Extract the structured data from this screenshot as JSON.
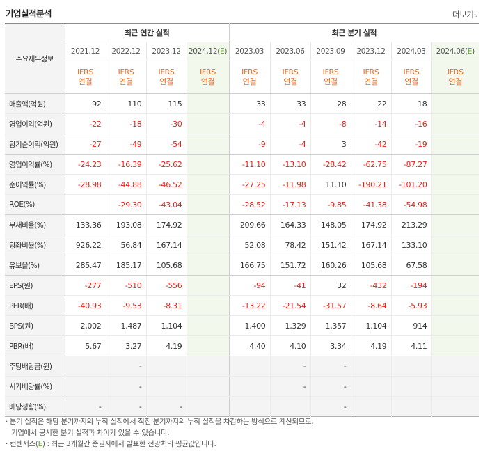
{
  "header": {
    "title": "기업실적분석",
    "more_label": "더보기"
  },
  "table": {
    "row_header": "주요재무정보",
    "groups": {
      "annual": "최근 연간 실적",
      "quarterly": "최근 분기 실적"
    },
    "annual_periods": [
      "2021,12",
      "2022,12",
      "2023,12",
      "2024,12(E)"
    ],
    "quarterly_periods": [
      "2023,03",
      "2023,06",
      "2023,09",
      "2023,12",
      "2024,03",
      "2024,06(E)"
    ],
    "ifrs_top": "IFRS",
    "ifrs_bottom": "연결",
    "rows": [
      {
        "label": "매출액(억원)",
        "values": [
          "92",
          "110",
          "115",
          "",
          "33",
          "33",
          "28",
          "22",
          "18",
          ""
        ]
      },
      {
        "label": "영업이익(억원)",
        "values": [
          "-22",
          "-18",
          "-30",
          "",
          "-4",
          "-4",
          "-8",
          "-14",
          "-16",
          ""
        ]
      },
      {
        "label": "당기순이익(억원)",
        "values": [
          "-27",
          "-49",
          "-54",
          "",
          "-9",
          "-4",
          "3",
          "-42",
          "-19",
          ""
        ]
      },
      {
        "label": "영업이익률(%)",
        "values": [
          "-24.23",
          "-16.39",
          "-25.62",
          "",
          "-11.10",
          "-13.10",
          "-28.42",
          "-62.75",
          "-87.27",
          ""
        ]
      },
      {
        "label": "순이익률(%)",
        "values": [
          "-28.98",
          "-44.88",
          "-46.52",
          "",
          "-27.25",
          "-11.98",
          "11.10",
          "-190.21",
          "-101.20",
          ""
        ]
      },
      {
        "label": "ROE(%)",
        "values": [
          "",
          "-29.30",
          "-43.04",
          "",
          "-28.52",
          "-17.13",
          "-9.85",
          "-41.38",
          "-54.98",
          ""
        ]
      },
      {
        "label": "부채비율(%)",
        "values": [
          "133.36",
          "193.08",
          "174.92",
          "",
          "209.66",
          "164.33",
          "148.05",
          "174.92",
          "213.29",
          ""
        ]
      },
      {
        "label": "당좌비율(%)",
        "values": [
          "926.22",
          "56.84",
          "167.14",
          "",
          "52.08",
          "78.42",
          "151.42",
          "167.14",
          "133.10",
          ""
        ]
      },
      {
        "label": "유보율(%)",
        "values": [
          "285.47",
          "185.17",
          "105.68",
          "",
          "166.75",
          "151.72",
          "160.26",
          "105.68",
          "67.58",
          ""
        ]
      },
      {
        "label": "EPS(원)",
        "values": [
          "-277",
          "-510",
          "-556",
          "",
          "-94",
          "-41",
          "32",
          "-432",
          "-194",
          ""
        ]
      },
      {
        "label": "PER(배)",
        "values": [
          "-40.93",
          "-9.53",
          "-8.31",
          "",
          "-13.22",
          "-21.54",
          "-31.57",
          "-8.64",
          "-5.93",
          ""
        ]
      },
      {
        "label": "BPS(원)",
        "values": [
          "2,002",
          "1,487",
          "1,104",
          "",
          "1,400",
          "1,329",
          "1,357",
          "1,104",
          "914",
          ""
        ]
      },
      {
        "label": "PBR(배)",
        "values": [
          "5.67",
          "3.27",
          "4.19",
          "",
          "4.40",
          "4.10",
          "3.34",
          "4.19",
          "4.11",
          ""
        ]
      },
      {
        "label": "주당배당금(원)",
        "values": [
          "",
          "-",
          "",
          "",
          "",
          "-",
          "-",
          "",
          "",
          ""
        ]
      },
      {
        "label": "시가배당률(%)",
        "values": [
          "",
          "-",
          "",
          "",
          "",
          "-",
          "-",
          "",
          "",
          ""
        ]
      },
      {
        "label": "배당성향(%)",
        "values": [
          "-",
          "-",
          "-",
          "",
          "",
          "",
          "-",
          "",
          "",
          ""
        ]
      }
    ]
  },
  "notes": {
    "line1": "· 분기 실적은 해당 분기까지의 누적 실적에서 직전 분기까지의 누적 실적을 차감하는 방식으로 계산되므로,",
    "line2": "기업에서 공시한 분기 실적과 차이가 있을 수 있습니다.",
    "line3_pre": "· 컨센서스(",
    "line3_e": "E",
    "line3_post": ") : 최근 3개월간 증권사에서 발표한 전망치의 평균값입니다."
  },
  "colors": {
    "negative": "#e4231b",
    "ifrs": "#f26b22",
    "estimate_bg": "#f2f8ec",
    "estimate_mark": "#5ea53a"
  }
}
